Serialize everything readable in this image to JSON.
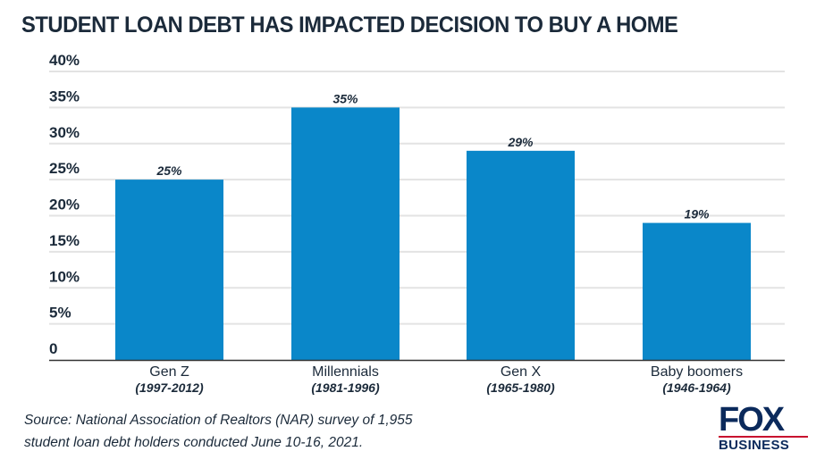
{
  "title": "STUDENT LOAN DEBT HAS IMPACTED DECISION TO BUY A HOME",
  "source": [
    "Source: National Association of Realtors (NAR) survey of 1,955",
    "student loan debt holders conducted June 10-16, 2021."
  ],
  "logo": {
    "top": "FOX",
    "bottom": "BUSINESS"
  },
  "colors": {
    "bar": "#0a87c9",
    "text": "#1b2a3a",
    "grid": "#e3e3e3"
  },
  "chart_data": {
    "type": "bar",
    "title": "STUDENT LOAN DEBT HAS IMPACTED DECISION TO BUY A HOME",
    "categories": [
      "Gen Z",
      "Millennials",
      "Gen X",
      "Baby boomers"
    ],
    "subcategories": [
      "(1997-2012)",
      "(1981-1996)",
      "(1965-1980)",
      "(1946-1964)"
    ],
    "values": [
      25,
      35,
      29,
      19
    ],
    "data_labels": [
      "25%",
      "35%",
      "29%",
      "19%"
    ],
    "yticks": [
      0,
      5,
      10,
      15,
      20,
      25,
      30,
      35,
      40
    ],
    "ytick_labels": [
      "0",
      "5%",
      "10%",
      "15%",
      "20%",
      "25%",
      "30%",
      "35%",
      "40%"
    ],
    "ylim": [
      0,
      40
    ],
    "xlabel": "",
    "ylabel": "",
    "grid": true
  }
}
